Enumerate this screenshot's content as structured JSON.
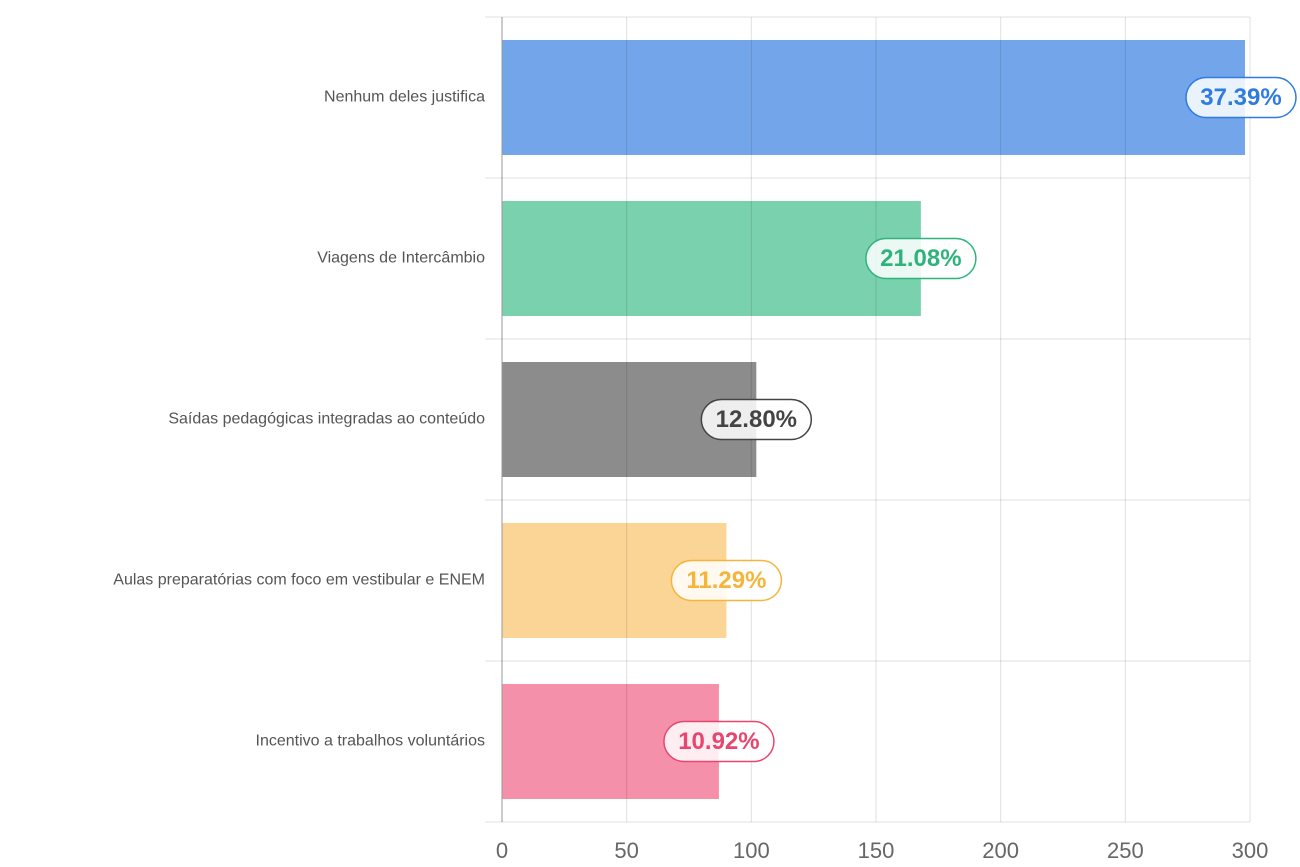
{
  "chart_data": {
    "type": "hbar",
    "categories": [
      "Nenhum deles justifica",
      "Viagens de Intercâmbio",
      "Saídas pedagógicas integradas ao conteúdo",
      "Aulas preparatórias com foco em vestibular e ENEM",
      "Incentivo a trabalhos voluntários"
    ],
    "values": [
      298,
      168,
      102,
      90,
      87
    ],
    "data_labels": [
      "37.39%",
      "21.08%",
      "12.80%",
      "11.29%",
      "10.92%"
    ],
    "colors": [
      "#73a5ea",
      "#7ad1ae",
      "#8c8c8c",
      "#fad595",
      "#f590aa"
    ],
    "label_colors": [
      "#2f7be0",
      "#2fb37c",
      "#444444",
      "#f5b43a",
      "#e8456f"
    ],
    "xlim": [
      0,
      300
    ],
    "xticks": [
      0,
      50,
      100,
      150,
      200,
      250,
      300
    ],
    "grid": true
  }
}
